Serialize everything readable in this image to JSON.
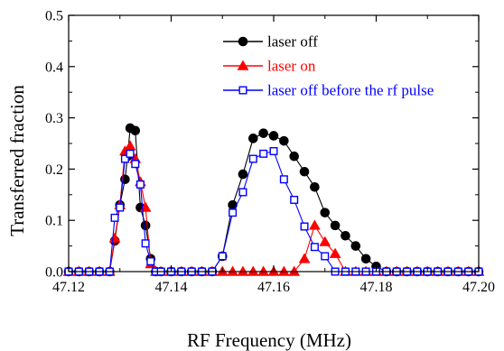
{
  "chart_data": {
    "type": "scatter",
    "xlabel": "RF Frequency (MHz)",
    "ylabel": "Transferred fraction",
    "xlim": [
      47.12,
      47.2
    ],
    "ylim": [
      0,
      0.5
    ],
    "xticks": [
      "47.12",
      "47.14",
      "47.16",
      "47.18",
      "47.20"
    ],
    "yticks": [
      "0.0",
      "0.1",
      "0.2",
      "0.3",
      "0.4",
      "0.5"
    ],
    "grid": false,
    "legend_position": "top-right",
    "series": [
      {
        "name": "laser off",
        "color": "#000000",
        "marker": "filled-circle",
        "x": [
          47.12,
          47.122,
          47.124,
          47.126,
          47.128,
          47.129,
          47.13,
          47.131,
          47.1315,
          47.132,
          47.133,
          47.134,
          47.135,
          47.136,
          47.137,
          47.138,
          47.14,
          47.142,
          47.144,
          47.146,
          47.148,
          47.15,
          47.152,
          47.154,
          47.156,
          47.158,
          47.16,
          47.162,
          47.164,
          47.166,
          47.168,
          47.17,
          47.172,
          47.174,
          47.176,
          47.178,
          47.18,
          47.182,
          47.184,
          47.186,
          47.188,
          47.19,
          47.192,
          47.194,
          47.196,
          47.198,
          47.2
        ],
        "y": [
          0,
          0,
          0,
          0,
          0,
          0.06,
          0.13,
          0.18,
          0.225,
          0.28,
          0.275,
          0.125,
          0.09,
          0.025,
          0,
          0,
          0,
          0,
          0,
          0,
          0,
          0.03,
          0.13,
          0.19,
          0.26,
          0.27,
          0.265,
          0.255,
          0.225,
          0.195,
          0.165,
          0.115,
          0.09,
          0.07,
          0.05,
          0.025,
          0.01,
          0,
          0,
          0,
          0,
          0,
          0,
          0,
          0,
          0,
          0
        ]
      },
      {
        "name": "laser on",
        "color": "#ff0000",
        "marker": "filled-triangle",
        "x": [
          47.12,
          47.122,
          47.124,
          47.126,
          47.128,
          47.129,
          47.13,
          47.131,
          47.132,
          47.133,
          47.134,
          47.135,
          47.136,
          47.137,
          47.138,
          47.14,
          47.142,
          47.144,
          47.146,
          47.148,
          47.15,
          47.152,
          47.154,
          47.156,
          47.158,
          47.16,
          47.162,
          47.164,
          47.166,
          47.168,
          47.17,
          47.172,
          47.174,
          47.176,
          47.178,
          47.18,
          47.182,
          47.184,
          47.186,
          47.188,
          47.19,
          47.192,
          47.194,
          47.196,
          47.198,
          47.2
        ],
        "y": [
          0,
          0,
          0,
          0,
          0,
          0.065,
          0.13,
          0.235,
          0.245,
          0.22,
          0.175,
          0.125,
          0.015,
          0,
          0,
          0,
          0,
          0,
          0,
          0,
          0,
          0,
          0,
          0,
          0,
          0,
          0,
          0,
          0.025,
          0.09,
          0.058,
          0.035,
          0,
          0,
          0,
          0,
          0,
          0,
          0,
          0,
          0,
          0,
          0,
          0,
          0,
          0
        ]
      },
      {
        "name": "laser off before the rf pulse",
        "color": "#0000ff",
        "marker": "open-square",
        "x": [
          47.12,
          47.122,
          47.124,
          47.126,
          47.128,
          47.129,
          47.13,
          47.131,
          47.132,
          47.133,
          47.134,
          47.135,
          47.136,
          47.137,
          47.138,
          47.14,
          47.142,
          47.144,
          47.146,
          47.148,
          47.15,
          47.152,
          47.154,
          47.156,
          47.158,
          47.16,
          47.162,
          47.164,
          47.166,
          47.168,
          47.17,
          47.172,
          47.174,
          47.176,
          47.178,
          47.18,
          47.182,
          47.184,
          47.186,
          47.188,
          47.19,
          47.192,
          47.194,
          47.196,
          47.198,
          47.2
        ],
        "y": [
          0,
          0,
          0,
          0,
          0,
          0.105,
          0.125,
          0.22,
          0.23,
          0.21,
          0.17,
          0.055,
          0.02,
          0,
          0,
          0,
          0,
          0,
          0,
          0,
          0.03,
          0.115,
          0.155,
          0.22,
          0.23,
          0.235,
          0.18,
          0.14,
          0.088,
          0.048,
          0.03,
          0,
          0,
          0,
          0,
          0,
          0,
          0,
          0,
          0,
          0,
          0,
          0,
          0,
          0,
          0
        ]
      }
    ]
  }
}
